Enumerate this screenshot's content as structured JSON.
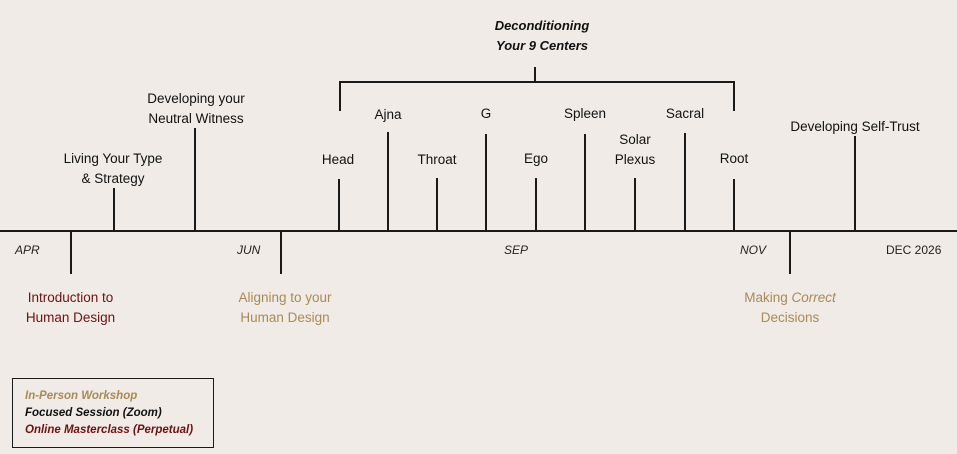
{
  "group_title": {
    "line1": "Deconditioning",
    "line2": "Your 9 Centers"
  },
  "months": {
    "apr": "APR",
    "jun": "JUN",
    "sep": "SEP",
    "nov": "NOV",
    "dec": "DEC 2026"
  },
  "above": {
    "living_type": {
      "line1": "Living Your Type",
      "line2": "& Strategy"
    },
    "neutral_witness": {
      "line1": "Developing your",
      "line2": "Neutral Witness"
    },
    "head": "Head",
    "ajna": "Ajna",
    "throat": "Throat",
    "g": "G",
    "ego": "Ego",
    "spleen": "Spleen",
    "solar_plexus": {
      "line1": "Solar",
      "line2": "Plexus"
    },
    "sacral": "Sacral",
    "root": "Root",
    "self_trust": "Developing Self-Trust"
  },
  "below": {
    "intro": {
      "line1": "Introduction to",
      "line2": "Human Design"
    },
    "aligning": {
      "line1": "Aligning to your",
      "line2": "Human Design"
    },
    "decisions": {
      "line1_pre": "Making ",
      "line1_em": "Correct",
      "line2": "Decisions"
    }
  },
  "legend": {
    "in_person": "In-Person Workshop",
    "focused": "Focused Session (Zoom)",
    "online": "Online Masterclass (Perpetual)"
  },
  "colors": {
    "background": "#f0ebe6",
    "in_person": "#a98a58",
    "focused": "#111111",
    "online": "#6e1111",
    "line": "#1a1a1a"
  }
}
